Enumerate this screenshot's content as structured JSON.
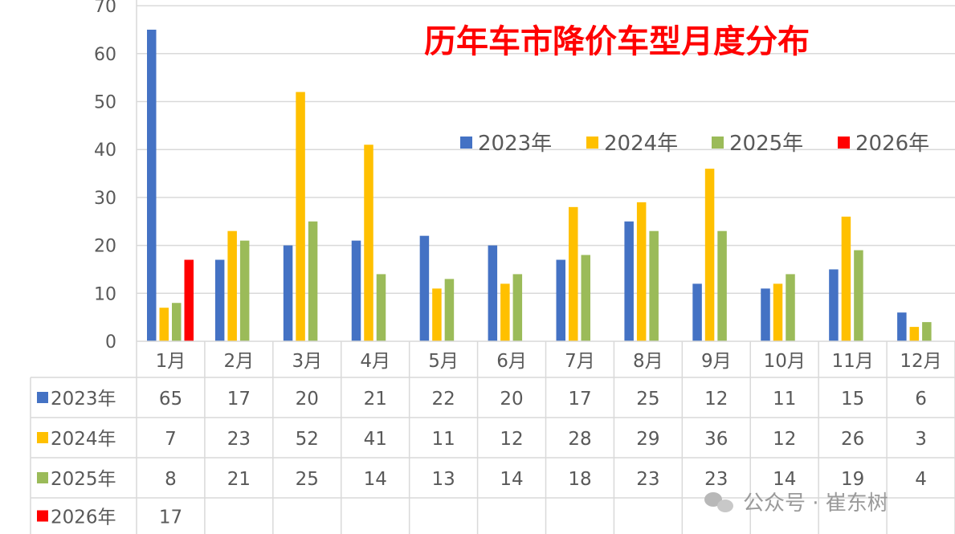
{
  "chart_data": {
    "type": "bar",
    "title": "历年车市降价车型月度分布",
    "categories": [
      "1月",
      "2月",
      "3月",
      "4月",
      "5月",
      "6月",
      "7月",
      "8月",
      "9月",
      "10月",
      "11月",
      "12月"
    ],
    "series": [
      {
        "name": "2023年",
        "color": "#4472C4",
        "values": [
          65,
          17,
          20,
          21,
          22,
          20,
          17,
          25,
          12,
          11,
          15,
          6
        ]
      },
      {
        "name": "2024年",
        "color": "#FFC000",
        "values": [
          7,
          23,
          52,
          41,
          11,
          12,
          28,
          29,
          36,
          12,
          26,
          3
        ]
      },
      {
        "name": "2025年",
        "color": "#9BBB59",
        "values": [
          8,
          21,
          25,
          14,
          13,
          14,
          18,
          23,
          23,
          14,
          19,
          4
        ]
      },
      {
        "name": "2026年",
        "color": "#FF0000",
        "values": [
          17,
          null,
          null,
          null,
          null,
          null,
          null,
          null,
          null,
          null,
          null,
          null
        ]
      }
    ],
    "y_ticks": [
      "0",
      "10",
      "20",
      "30",
      "40",
      "50",
      "60",
      "70"
    ],
    "ylim": [
      0,
      70
    ],
    "grid": true,
    "legend_position": "top-right",
    "data_table": true
  },
  "watermark": "公众号 · 崔东树",
  "title_color": "#FF0000"
}
